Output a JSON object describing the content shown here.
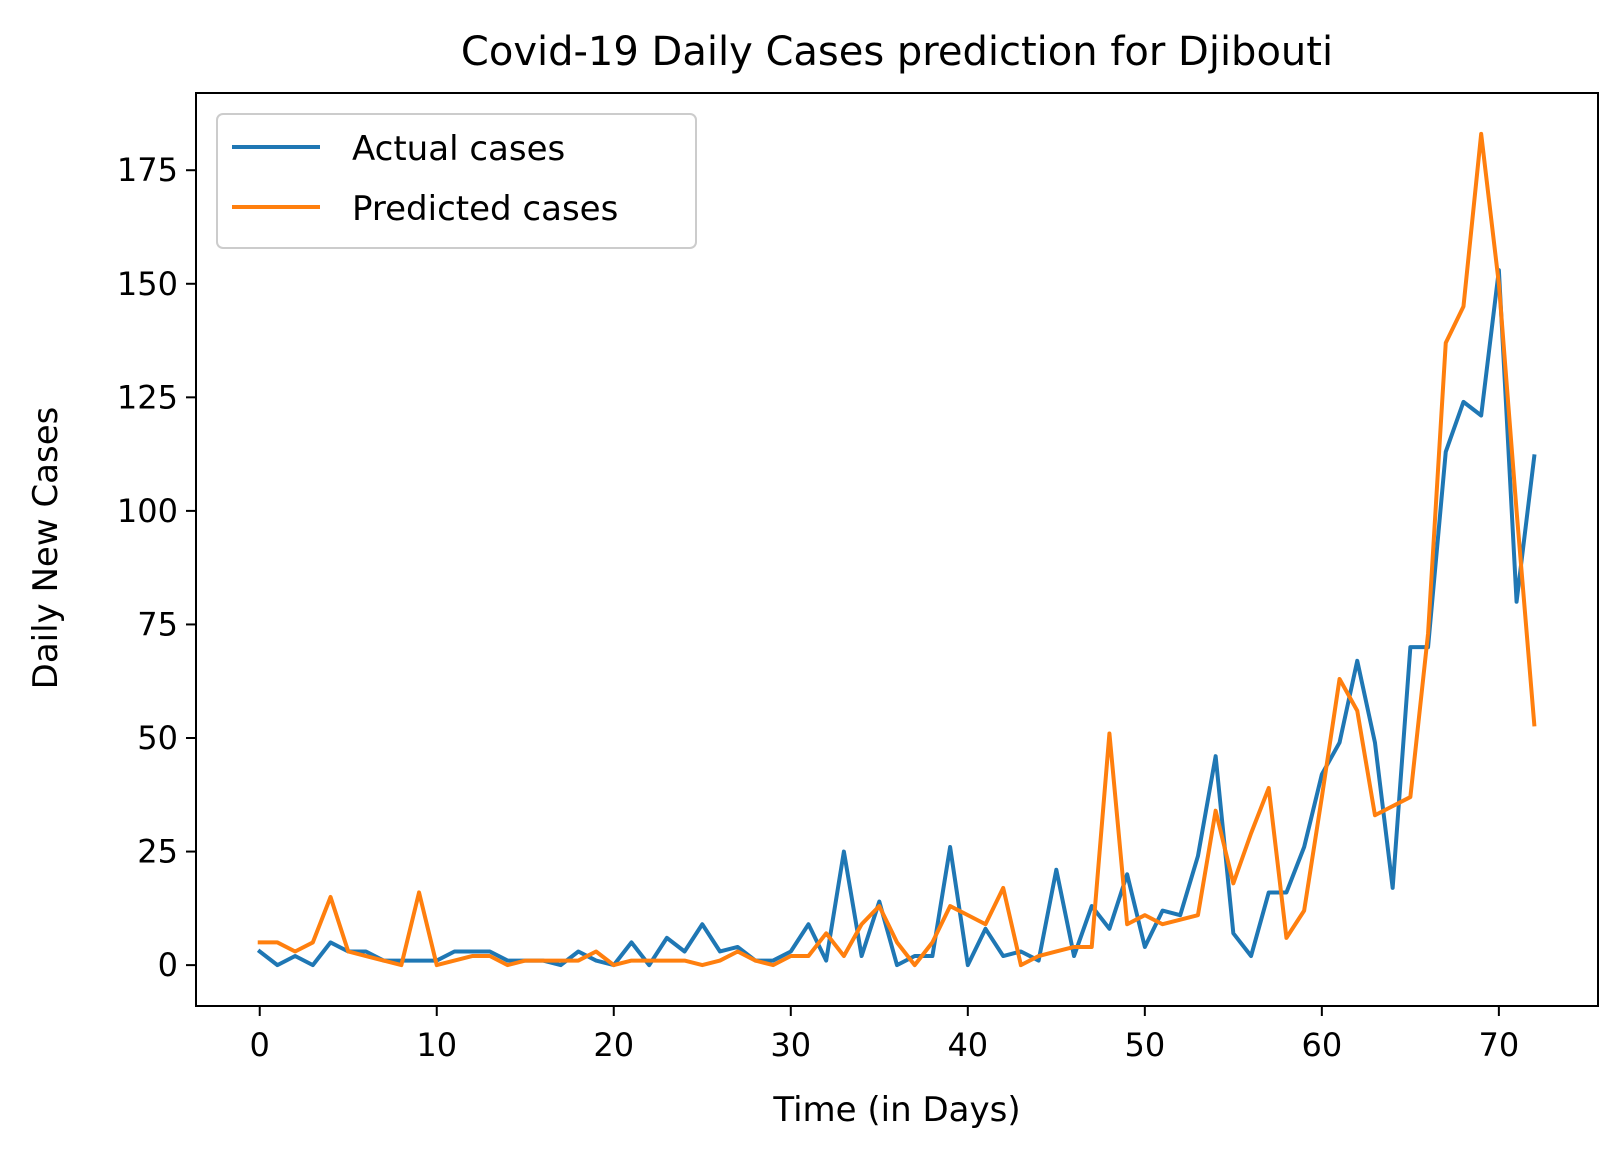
{
  "chart_data": {
    "type": "line",
    "title": "Covid-19 Daily Cases prediction for Djibouti",
    "xlabel": "Time (in Days)",
    "ylabel": "Daily New Cases",
    "xlim": [
      -3.6,
      75.6
    ],
    "ylim": [
      -9,
      192
    ],
    "xticks": [
      0,
      10,
      20,
      30,
      40,
      50,
      60,
      70
    ],
    "yticks": [
      0,
      25,
      50,
      75,
      100,
      125,
      150,
      175
    ],
    "grid": false,
    "legend_position": "upper left",
    "series": [
      {
        "name": "Actual cases",
        "color": "#1f77b4",
        "values": [
          3,
          0,
          2,
          0,
          5,
          3,
          3,
          1,
          1,
          1,
          1,
          3,
          3,
          3,
          1,
          1,
          1,
          0,
          3,
          1,
          0,
          5,
          0,
          6,
          3,
          9,
          3,
          4,
          1,
          1,
          3,
          9,
          1,
          25,
          2,
          14,
          0,
          2,
          2,
          26,
          0,
          8,
          2,
          3,
          1,
          21,
          2,
          13,
          8,
          20,
          4,
          12,
          11,
          24,
          46,
          7,
          2,
          16,
          16,
          26,
          42,
          49,
          67,
          49,
          17,
          70,
          70,
          113,
          124,
          121,
          153,
          80,
          112
        ]
      },
      {
        "name": "Predicted cases",
        "color": "#ff7f0e",
        "values": [
          5,
          5,
          3,
          5,
          15,
          3,
          2,
          1,
          0,
          16,
          0,
          1,
          2,
          2,
          0,
          1,
          1,
          1,
          1,
          3,
          0,
          1,
          1,
          1,
          1,
          0,
          1,
          3,
          1,
          0,
          2,
          2,
          7,
          2,
          9,
          13,
          5,
          0,
          5,
          13,
          11,
          9,
          17,
          0,
          2,
          3,
          4,
          4,
          51,
          9,
          11,
          9,
          10,
          11,
          34,
          18,
          29,
          39,
          6,
          12,
          37,
          63,
          56,
          33,
          35,
          37,
          73,
          137,
          145,
          183,
          150,
          100,
          53
        ]
      }
    ]
  }
}
